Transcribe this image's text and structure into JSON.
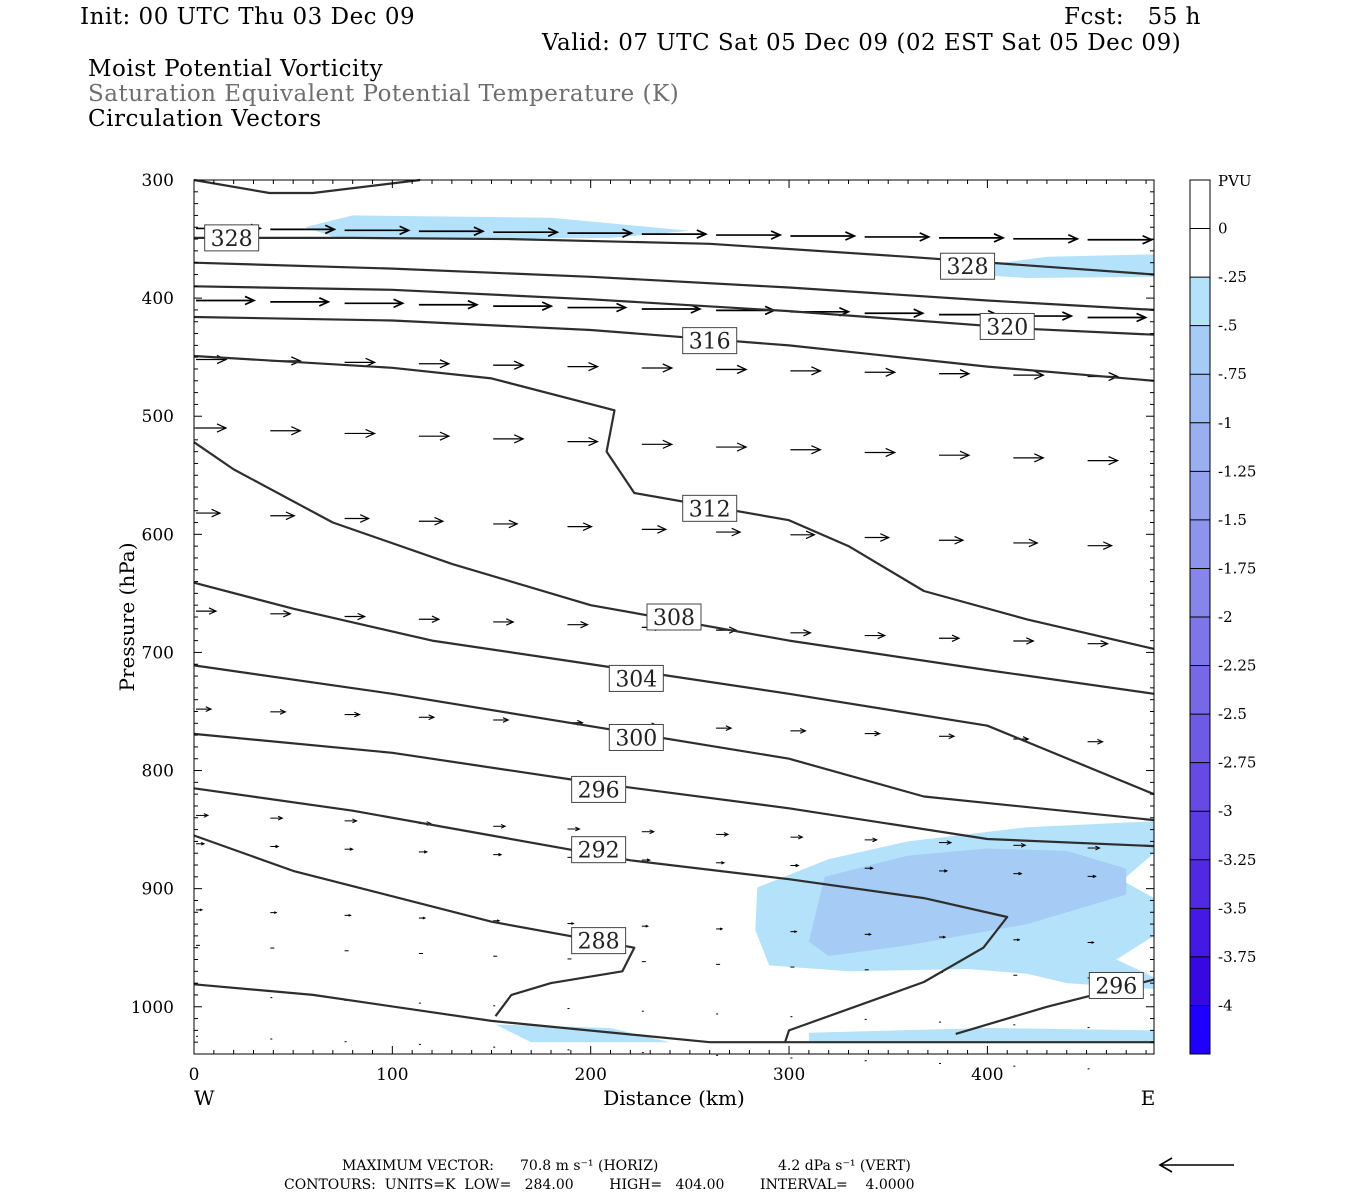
{
  "header": {
    "init": "Init: 00 UTC Thu 03 Dec 09",
    "fcst": "Fcst:   55 h",
    "valid": "Valid: 07 UTC Sat 05 Dec 09 (02 EST Sat 05 Dec 09)",
    "fields": [
      "Moist Potential Vorticity",
      "Saturation Equivalent Potential Temperature (K)",
      "Circulation Vectors"
    ]
  },
  "footer": {
    "max_vector_label": "MAXIMUM VECTOR:",
    "max_vector_horiz": "70.8 m s⁻¹ (HORIZ)",
    "max_vector_vert": "4.2 dPa s⁻¹ (VERT)",
    "contours": "CONTOURS:  UNITS=K  LOW=   284.00        HIGH=   404.00        INTERVAL=    4.0000"
  },
  "colors": {
    "contour": "#2e2e2e",
    "mpv_light": "#b4e2fa",
    "mpv_medium": "#a6cbf5"
  },
  "chart_data": {
    "type": "cross-section",
    "xlabel": "Distance (km)",
    "ylabel": "Pressure (hPa)",
    "x_end_labels": [
      "W",
      "E"
    ],
    "xlim": [
      0,
      484
    ],
    "ylim": [
      1040,
      300
    ],
    "x_ticks": [
      0,
      100,
      200,
      300,
      400
    ],
    "y_ticks": [
      300,
      400,
      500,
      600,
      700,
      800,
      900,
      1000
    ],
    "contour_labels": [
      {
        "value": "328",
        "x": 19,
        "y": 349
      },
      {
        "value": "328",
        "x": 390,
        "y": 373
      },
      {
        "value": "320",
        "x": 410,
        "y": 424
      },
      {
        "value": "316",
        "x": 260,
        "y": 436
      },
      {
        "value": "312",
        "x": 260,
        "y": 578
      },
      {
        "value": "308",
        "x": 242,
        "y": 670
      },
      {
        "value": "304",
        "x": 223,
        "y": 722
      },
      {
        "value": "300",
        "x": 223,
        "y": 772
      },
      {
        "value": "296",
        "x": 204,
        "y": 816
      },
      {
        "value": "292",
        "x": 204,
        "y": 867
      },
      {
        "value": "288",
        "x": 204,
        "y": 944
      },
      {
        "value": "296",
        "x": 465,
        "y": 982
      }
    ],
    "colorbar": {
      "title": "PVU",
      "labels": [
        "0",
        "-.25",
        "-.5",
        "-.75",
        "-1",
        "-1.25",
        "-1.5",
        "-1.75",
        "-2",
        "-2.25",
        "-2.5",
        "-2.75",
        "-3",
        "-3.25",
        "-3.5",
        "-3.75",
        "-4"
      ],
      "colors": [
        "#ffffff",
        "#ffffff",
        "#b4e2fa",
        "#a6cbf5",
        "#9fbdf3",
        "#99afef",
        "#93a1ee",
        "#8c94ec",
        "#8585ea",
        "#7e76e8",
        "#7668e6",
        "#6e5ae5",
        "#654be4",
        "#5b3be4",
        "#502ae3",
        "#4419e3",
        "#3608e2",
        "#1f00ff"
      ]
    },
    "isentropes": [
      {
        "p": [
          [
            0,
            300
          ],
          [
            38,
            311
          ],
          [
            60,
            311
          ],
          [
            114,
            300
          ]
        ]
      },
      {
        "p": [
          [
            0,
            349
          ],
          [
            80,
            349
          ],
          [
            160,
            350
          ],
          [
            260,
            354
          ],
          [
            360,
            365
          ],
          [
            484,
            380
          ]
        ]
      },
      {
        "p": [
          [
            0,
            370
          ],
          [
            100,
            375
          ],
          [
            200,
            382
          ],
          [
            300,
            391
          ],
          [
            400,
            402
          ],
          [
            484,
            410
          ]
        ]
      },
      {
        "p": [
          [
            0,
            390
          ],
          [
            100,
            393
          ],
          [
            200,
            401
          ],
          [
            300,
            411
          ],
          [
            420,
            426
          ],
          [
            484,
            431
          ]
        ]
      },
      {
        "p": [
          [
            0,
            416
          ],
          [
            100,
            419
          ],
          [
            200,
            427
          ],
          [
            300,
            440
          ],
          [
            400,
            458
          ],
          [
            484,
            470
          ]
        ]
      },
      {
        "p": [
          [
            0,
            449
          ],
          [
            100,
            459
          ],
          [
            150,
            468
          ],
          [
            212,
            495
          ],
          [
            208,
            530
          ],
          [
            222,
            565
          ],
          [
            300,
            588
          ],
          [
            330,
            610
          ],
          [
            368,
            648
          ],
          [
            420,
            672
          ],
          [
            484,
            697
          ]
        ]
      },
      {
        "p": [
          [
            0,
            522
          ],
          [
            20,
            545
          ],
          [
            70,
            590
          ],
          [
            130,
            625
          ],
          [
            200,
            660
          ],
          [
            300,
            690
          ],
          [
            400,
            715
          ],
          [
            484,
            735
          ]
        ]
      },
      {
        "p": [
          [
            0,
            641
          ],
          [
            50,
            663
          ],
          [
            120,
            690
          ],
          [
            220,
            715
          ],
          [
            300,
            735
          ],
          [
            400,
            762
          ],
          [
            484,
            820
          ]
        ]
      },
      {
        "p": [
          [
            0,
            711
          ],
          [
            100,
            735
          ],
          [
            220,
            768
          ],
          [
            300,
            790
          ],
          [
            368,
            822
          ],
          [
            484,
            842
          ]
        ]
      },
      {
        "p": [
          [
            0,
            769
          ],
          [
            100,
            785
          ],
          [
            200,
            810
          ],
          [
            300,
            832
          ],
          [
            400,
            858
          ],
          [
            484,
            864
          ]
        ]
      },
      {
        "p": [
          [
            0,
            815
          ],
          [
            80,
            834
          ],
          [
            150,
            855
          ],
          [
            220,
            876
          ],
          [
            300,
            892
          ],
          [
            368,
            908
          ],
          [
            410,
            924
          ],
          [
            398,
            950
          ],
          [
            368,
            979
          ],
          [
            300,
            1020
          ],
          [
            298,
            1030
          ]
        ]
      },
      {
        "p": [
          [
            0,
            855
          ],
          [
            50,
            885
          ],
          [
            150,
            928
          ],
          [
            222,
            950
          ],
          [
            216,
            970
          ],
          [
            180,
            980
          ],
          [
            160,
            990
          ],
          [
            152,
            1008
          ]
        ]
      },
      {
        "p": [
          [
            384,
            1023
          ],
          [
            430,
            1000
          ],
          [
            484,
            977
          ]
        ]
      },
      {
        "p": [
          [
            0,
            981
          ],
          [
            60,
            990
          ],
          [
            150,
            1012
          ],
          [
            260,
            1030
          ],
          [
            484,
            1030
          ]
        ]
      }
    ],
    "mpv_regions": [
      {
        "level": "-0.25 to -0.5",
        "p": [
          [
            56,
            340
          ],
          [
            80,
            330
          ],
          [
            180,
            332
          ],
          [
            250,
            343
          ],
          [
            210,
            349
          ],
          [
            120,
            350
          ],
          [
            70,
            348
          ]
        ]
      },
      {
        "level": "-0.25 to -0.5",
        "p": [
          [
            390,
            374
          ],
          [
            430,
            365
          ],
          [
            484,
            363
          ],
          [
            484,
            382
          ],
          [
            420,
            383
          ],
          [
            392,
            380
          ]
        ]
      },
      {
        "level": "-0.25 to -0.5",
        "p": [
          [
            284,
            899
          ],
          [
            320,
            875
          ],
          [
            360,
            860
          ],
          [
            420,
            848
          ],
          [
            484,
            843
          ],
          [
            484,
            870
          ],
          [
            468,
            893
          ],
          [
            484,
            908
          ],
          [
            484,
            940
          ],
          [
            465,
            960
          ],
          [
            484,
            975
          ],
          [
            484,
            985
          ],
          [
            440,
            980
          ],
          [
            420,
            972
          ],
          [
            390,
            968
          ],
          [
            330,
            970
          ],
          [
            290,
            965
          ],
          [
            283,
            935
          ]
        ]
      },
      {
        "level": "-0.5 to -0.75",
        "p": [
          [
            318,
            890
          ],
          [
            360,
            872
          ],
          [
            400,
            866
          ],
          [
            440,
            868
          ],
          [
            470,
            883
          ],
          [
            470,
            905
          ],
          [
            420,
            930
          ],
          [
            360,
            948
          ],
          [
            320,
            957
          ],
          [
            310,
            945
          ],
          [
            315,
            910
          ]
        ]
      },
      {
        "level": "-0.25 to -0.5",
        "p": [
          [
            152,
            1015
          ],
          [
            210,
            1018
          ],
          [
            240,
            1030
          ],
          [
            170,
            1030
          ]
        ]
      },
      {
        "level": "-0.25 to -0.5",
        "p": [
          [
            310,
            1030
          ],
          [
            310,
            1022
          ],
          [
            400,
            1018
          ],
          [
            484,
            1020
          ],
          [
            484,
            1030
          ]
        ]
      }
    ]
  }
}
